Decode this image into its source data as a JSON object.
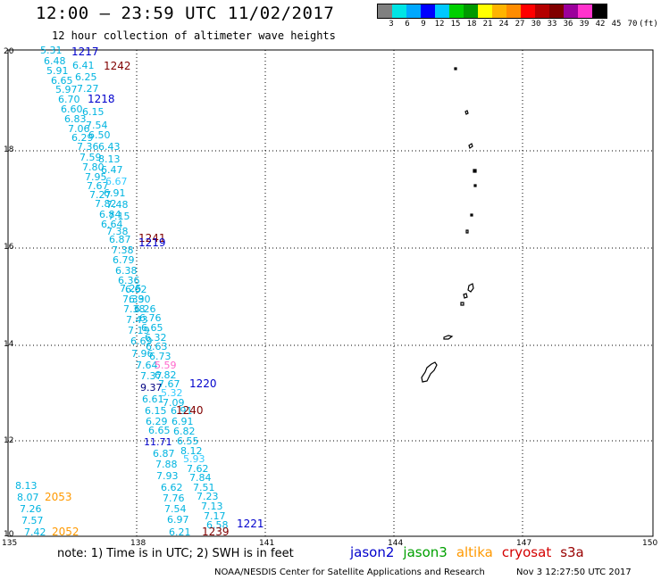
{
  "title": "12:00 — 23:59 UTC 11/02/2017",
  "subtitle": "12 hour collection of altimeter wave heights",
  "colorbar": {
    "colors": [
      "#808080",
      "#00e5e5",
      "#00a8ff",
      "#0000ff",
      "#00c8ff",
      "#00d000",
      "#009a00",
      "#ffff00",
      "#ffb400",
      "#ff8c00",
      "#ff0000",
      "#b40000",
      "#800000",
      "#9b009b",
      "#ff33cc",
      "#000000"
    ],
    "ticks": [
      "3",
      "6",
      "9",
      "12",
      "15",
      "18",
      "21",
      "24",
      "27",
      "30",
      "33",
      "36",
      "39",
      "42",
      "45",
      "70",
      "(ft)"
    ]
  },
  "lat_labels": [
    "20",
    "18",
    "16",
    "14",
    "12",
    "10"
  ],
  "lon_labels": [
    "135",
    "138",
    "141",
    "144",
    "147",
    "150"
  ],
  "note": "note: 1) Time is in UTC; 2) SWH is in feet",
  "legend": [
    {
      "name": "jason2",
      "color": "#0000cc"
    },
    {
      "name": "jason3",
      "color": "#00a000"
    },
    {
      "name": "altika",
      "color": "#ff9900"
    },
    {
      "name": "cryosat",
      "color": "#d40000"
    },
    {
      "name": "s3a",
      "color": "#990000"
    }
  ],
  "credit": "NOAA/NESDIS Center for Satellite Applications and Research",
  "credit_date": "Nov  3 12:27:50 UTC 2017",
  "map": {
    "lat_range": [
      10,
      20
    ],
    "lon_range": [
      135,
      150
    ],
    "grid": "dotted"
  },
  "track_times": [
    {
      "text": "1217",
      "color": "#0000cc"
    },
    {
      "text": "1242",
      "color": "#800000"
    },
    {
      "text": "1218",
      "color": "#0000cc"
    },
    {
      "text": "1241",
      "color": "#800000"
    },
    {
      "text": "1219",
      "color": "#0000cc"
    },
    {
      "text": "1220",
      "color": "#0000cc"
    },
    {
      "text": "1240",
      "color": "#800000"
    },
    {
      "text": "1221",
      "color": "#0000cc"
    },
    {
      "text": "1239",
      "color": "#800000"
    },
    {
      "text": "2053",
      "color": "#ff9900"
    },
    {
      "text": "2052",
      "color": "#ff9900"
    }
  ],
  "wave_heights": [
    {
      "text": "5.31",
      "color": "#00b4e0"
    },
    {
      "text": "6.48",
      "color": "#00b4e0"
    },
    {
      "text": "6.41",
      "color": "#00b4e0"
    },
    {
      "text": "5.91",
      "color": "#00b4e0"
    },
    {
      "text": "6.25",
      "color": "#00b4e0"
    },
    {
      "text": "6.65",
      "color": "#00b4e0"
    },
    {
      "text": "5.97",
      "color": "#00b4e0"
    },
    {
      "text": "7.27",
      "color": "#00b4e0"
    },
    {
      "text": "6.70",
      "color": "#00b4e0"
    },
    {
      "text": "6.60",
      "color": "#00b4e0"
    },
    {
      "text": "6.15",
      "color": "#00b4e0"
    },
    {
      "text": "6.83",
      "color": "#00b4e0"
    },
    {
      "text": "7.54",
      "color": "#00b4e0"
    },
    {
      "text": "7.06",
      "color": "#00b4e0"
    },
    {
      "text": "6.50",
      "color": "#00b4e0"
    },
    {
      "text": "6.29",
      "color": "#00b4e0"
    },
    {
      "text": "7.36",
      "color": "#00b4e0"
    },
    {
      "text": "6.43",
      "color": "#00b4e0"
    },
    {
      "text": "7.59",
      "color": "#00b4e0"
    },
    {
      "text": "8.13",
      "color": "#00b4e0"
    },
    {
      "text": "7.80",
      "color": "#00b4e0"
    },
    {
      "text": "6.47",
      "color": "#00b4e0"
    },
    {
      "text": "7.95",
      "color": "#00b4e0"
    },
    {
      "text": "7.67",
      "color": "#00b4e0"
    },
    {
      "text": "6.67",
      "color": "#33ccff"
    },
    {
      "text": "7.27",
      "color": "#00b4e0"
    },
    {
      "text": "6.91",
      "color": "#00b4e0"
    },
    {
      "text": "7.82",
      "color": "#00b4e0"
    },
    {
      "text": "7.48",
      "color": "#00b4e0"
    },
    {
      "text": "6.84",
      "color": "#00b4e0"
    },
    {
      "text": "7.15",
      "color": "#00b4e0"
    },
    {
      "text": "6.64",
      "color": "#00b4e0"
    },
    {
      "text": "7.38",
      "color": "#00b4e0"
    },
    {
      "text": "6.87",
      "color": "#00b4e0"
    },
    {
      "text": "7.38",
      "color": "#00b4e0"
    },
    {
      "text": "6.79",
      "color": "#00b4e0"
    },
    {
      "text": "6.38",
      "color": "#00b4e0"
    },
    {
      "text": "6.36",
      "color": "#00b4e0"
    },
    {
      "text": "7.25",
      "color": "#00b4e0"
    },
    {
      "text": "6.62",
      "color": "#00b4e0"
    },
    {
      "text": "7.33",
      "color": "#00b4e0"
    },
    {
      "text": "6.90",
      "color": "#00b4e0"
    },
    {
      "text": "7.38",
      "color": "#00b4e0"
    },
    {
      "text": "6.26",
      "color": "#00b4e0"
    },
    {
      "text": "7.43",
      "color": "#00b4e0"
    },
    {
      "text": "6.76",
      "color": "#00b4e0"
    },
    {
      "text": "7.19",
      "color": "#00b4e0"
    },
    {
      "text": "6.65",
      "color": "#00b4e0"
    },
    {
      "text": "6.32",
      "color": "#00b4e0"
    },
    {
      "text": "6.69",
      "color": "#00b4e0"
    },
    {
      "text": "6.63",
      "color": "#00b4e0"
    },
    {
      "text": "7.96",
      "color": "#00b4e0"
    },
    {
      "text": "6.73",
      "color": "#00b4e0"
    },
    {
      "text": "7.64",
      "color": "#00b4e0"
    },
    {
      "text": "5.59",
      "color": "#ff66cc"
    },
    {
      "text": "7.37",
      "color": "#00b4e0"
    },
    {
      "text": "6.82",
      "color": "#00b4e0"
    },
    {
      "text": "9.37",
      "color": "#000080"
    },
    {
      "text": "7.67",
      "color": "#00b4e0"
    },
    {
      "text": "5.32",
      "color": "#33ccff"
    },
    {
      "text": "6.61",
      "color": "#00b4e0"
    },
    {
      "text": "7.09",
      "color": "#00b4e0"
    },
    {
      "text": "6.15",
      "color": "#00b4e0"
    },
    {
      "text": "6.91",
      "color": "#00b4e0"
    },
    {
      "text": "6.29",
      "color": "#00b4e0"
    },
    {
      "text": "6.91",
      "color": "#00b4e0"
    },
    {
      "text": "6.65",
      "color": "#00b4e0"
    },
    {
      "text": "6.82",
      "color": "#00b4e0"
    },
    {
      "text": "11.71",
      "color": "#0000cc"
    },
    {
      "text": "6.55",
      "color": "#00b4e0"
    },
    {
      "text": "8.12",
      "color": "#00b4e0"
    },
    {
      "text": "6.87",
      "color": "#00b4e0"
    },
    {
      "text": "5.93",
      "color": "#33ccff"
    },
    {
      "text": "7.88",
      "color": "#00b4e0"
    },
    {
      "text": "7.62",
      "color": "#00b4e0"
    },
    {
      "text": "7.93",
      "color": "#00b4e0"
    },
    {
      "text": "7.84",
      "color": "#00b4e0"
    },
    {
      "text": "6.62",
      "color": "#00b4e0"
    },
    {
      "text": "7.51",
      "color": "#00b4e0"
    },
    {
      "text": "7.76",
      "color": "#00b4e0"
    },
    {
      "text": "7.23",
      "color": "#00b4e0"
    },
    {
      "text": "7.54",
      "color": "#00b4e0"
    },
    {
      "text": "7.13",
      "color": "#00b4e0"
    },
    {
      "text": "7.17",
      "color": "#00b4e0"
    },
    {
      "text": "6.97",
      "color": "#00b4e0"
    },
    {
      "text": "6.58",
      "color": "#00b4e0"
    },
    {
      "text": "6.21",
      "color": "#00b4e0"
    },
    {
      "text": "8.13",
      "color": "#00b4e0"
    },
    {
      "text": "8.07",
      "color": "#00b4e0"
    },
    {
      "text": "7.26",
      "color": "#00b4e0"
    },
    {
      "text": "7.57",
      "color": "#00b4e0"
    },
    {
      "text": "7.42",
      "color": "#00b4e0"
    }
  ]
}
